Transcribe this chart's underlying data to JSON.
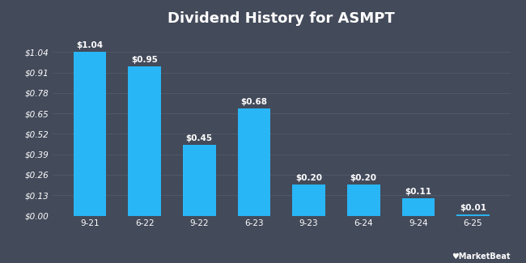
{
  "title": "Dividend History for ASMPT",
  "categories": [
    "9-21",
    "6-22",
    "9-22",
    "6-23",
    "9-23",
    "6-24",
    "9-24",
    "6-25"
  ],
  "values": [
    1.04,
    0.95,
    0.45,
    0.68,
    0.2,
    0.2,
    0.11,
    0.01
  ],
  "bar_color": "#29b6f6",
  "background_color": "#434a5a",
  "title_color": "#ffffff",
  "tick_color": "#ffffff",
  "grid_color": "#525a6a",
  "ylim": [
    0,
    1.17
  ],
  "yticks": [
    0.0,
    0.13,
    0.26,
    0.39,
    0.52,
    0.65,
    0.78,
    0.91,
    1.04
  ],
  "ytick_labels": [
    "$0.00",
    "$0.13",
    "$0.26",
    "$0.39",
    "$0.52",
    "$0.65",
    "$0.78",
    "$0.91",
    "$1.04"
  ],
  "label_color": "#ffffff",
  "title_fontsize": 13,
  "tick_fontsize": 7.5,
  "annotation_fontsize": 7.5
}
